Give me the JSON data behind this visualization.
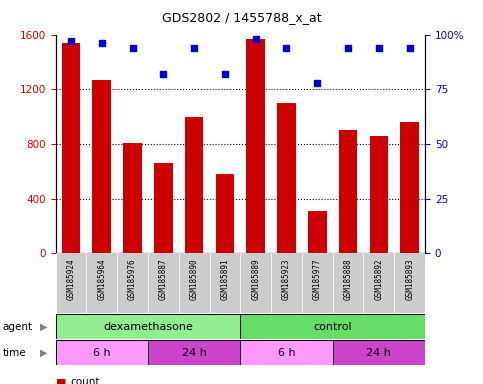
{
  "title": "GDS2802 / 1455788_x_at",
  "samples": [
    "GSM185924",
    "GSM185964",
    "GSM185976",
    "GSM185887",
    "GSM185890",
    "GSM185891",
    "GSM185889",
    "GSM185923",
    "GSM185977",
    "GSM185888",
    "GSM185892",
    "GSM185893"
  ],
  "counts": [
    1540,
    1270,
    810,
    660,
    1000,
    580,
    1570,
    1100,
    310,
    900,
    860,
    960
  ],
  "percentile": [
    97,
    96,
    94,
    82,
    94,
    82,
    98,
    94,
    78,
    94,
    94,
    94
  ],
  "ylim_left": [
    0,
    1600
  ],
  "ylim_right": [
    0,
    100
  ],
  "yticks_left": [
    0,
    400,
    800,
    1200,
    1600
  ],
  "yticks_right": [
    0,
    25,
    50,
    75,
    100
  ],
  "bar_color": "#cc0000",
  "dot_color": "#0000cc",
  "grid_color": "#000000",
  "groups": [
    {
      "label": "dexamethasone",
      "start": 0,
      "end": 6,
      "color": "#90ee90"
    },
    {
      "label": "control",
      "start": 6,
      "end": 12,
      "color": "#66dd66"
    }
  ],
  "time_groups": [
    {
      "label": "6 h",
      "start": 0,
      "end": 3,
      "color": "#ff99ff"
    },
    {
      "label": "24 h",
      "start": 3,
      "end": 6,
      "color": "#cc44cc"
    },
    {
      "label": "6 h",
      "start": 6,
      "end": 9,
      "color": "#ff99ff"
    },
    {
      "label": "24 h",
      "start": 9,
      "end": 12,
      "color": "#cc44cc"
    }
  ],
  "legend_count_color": "#cc0000",
  "legend_dot_color": "#0000cc",
  "bg_color": "#ffffff",
  "tick_bg_color": "#cccccc"
}
